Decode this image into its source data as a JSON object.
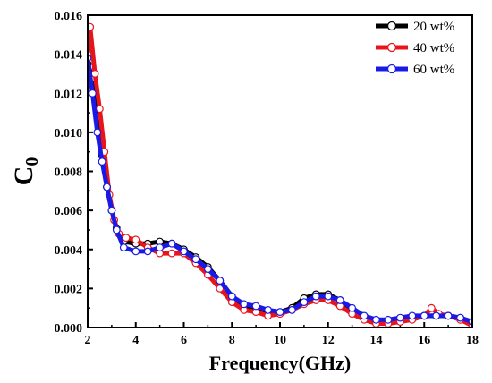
{
  "chart_data": {
    "type": "line",
    "xlabel": "Frequency(GHz)",
    "ylabel": "C",
    "ylabel_subscript": "0",
    "xlim": [
      2,
      18
    ],
    "ylim": [
      0,
      0.016
    ],
    "x_ticks": [
      2,
      4,
      6,
      8,
      10,
      12,
      14,
      16,
      18
    ],
    "x_tick_labels": [
      "2",
      "4",
      "6",
      "8",
      "10",
      "12",
      "14",
      "16",
      "18"
    ],
    "y_ticks": [
      0,
      0.002,
      0.004,
      0.006,
      0.008,
      0.01,
      0.012,
      0.014,
      0.016
    ],
    "y_tick_labels": [
      "0.000",
      "0.002",
      "0.004",
      "0.006",
      "0.008",
      "0.010",
      "0.012",
      "0.014",
      "0.016"
    ],
    "legend_position": "top-right",
    "marker": "open-circle",
    "series": [
      {
        "name": "20 wt%",
        "color": "#000000",
        "x": [
          2.0,
          2.2,
          2.4,
          2.6,
          2.8,
          3.0,
          3.2,
          3.5,
          4.0,
          4.5,
          5.0,
          5.5,
          6.0,
          6.5,
          7.0,
          7.5,
          8.0,
          8.5,
          9.0,
          9.5,
          10.0,
          10.5,
          11.0,
          11.5,
          12.0,
          12.5,
          13.0,
          13.5,
          14.0,
          14.5,
          15.0,
          15.5,
          16.0,
          16.5,
          17.0,
          17.5,
          18.0
        ],
        "values": [
          0.0135,
          0.0128,
          0.0108,
          0.0088,
          0.0072,
          0.006,
          0.0051,
          0.0044,
          0.0043,
          0.0043,
          0.0044,
          0.0043,
          0.004,
          0.0036,
          0.0031,
          0.0024,
          0.0016,
          0.0011,
          0.001,
          0.0008,
          0.0008,
          0.001,
          0.0015,
          0.0017,
          0.0017,
          0.0014,
          0.0009,
          0.0005,
          0.0003,
          0.0003,
          0.0004,
          0.0005,
          0.0006,
          0.0006,
          0.0006,
          0.0005,
          0.0002
        ]
      },
      {
        "name": "40 wt%",
        "color": "#e8141c",
        "x": [
          2.0,
          2.1,
          2.3,
          2.5,
          2.7,
          2.9,
          3.1,
          3.3,
          3.6,
          4.0,
          4.5,
          5.0,
          5.5,
          6.0,
          6.5,
          7.0,
          7.5,
          8.0,
          8.5,
          9.0,
          9.5,
          10.0,
          10.5,
          11.0,
          11.5,
          12.0,
          12.5,
          13.0,
          13.5,
          14.0,
          14.5,
          15.0,
          15.5,
          16.0,
          16.3,
          16.6,
          17.0,
          17.5,
          18.0
        ],
        "values": [
          0.014,
          0.0154,
          0.013,
          0.0112,
          0.009,
          0.0068,
          0.0055,
          0.0048,
          0.0046,
          0.0045,
          0.0041,
          0.0038,
          0.0038,
          0.0038,
          0.0033,
          0.0027,
          0.002,
          0.0013,
          0.0009,
          0.0008,
          0.0006,
          0.0007,
          0.0009,
          0.0012,
          0.0014,
          0.0014,
          0.0011,
          0.0007,
          0.0004,
          0.0002,
          0.0002,
          0.0003,
          0.0004,
          0.0006,
          0.001,
          0.0007,
          0.0006,
          0.0004,
          0.0001
        ]
      },
      {
        "name": "60 wt%",
        "color": "#1a1ae6",
        "x": [
          2.0,
          2.2,
          2.4,
          2.6,
          2.8,
          3.0,
          3.2,
          3.5,
          4.0,
          4.5,
          5.0,
          5.5,
          6.0,
          6.5,
          7.0,
          7.5,
          8.0,
          8.5,
          9.0,
          9.5,
          10.0,
          10.5,
          11.0,
          11.5,
          12.0,
          12.5,
          13.0,
          13.5,
          14.0,
          14.5,
          15.0,
          15.5,
          16.0,
          16.5,
          17.0,
          17.5,
          18.0
        ],
        "values": [
          0.0138,
          0.012,
          0.01,
          0.0085,
          0.0072,
          0.006,
          0.005,
          0.0041,
          0.0039,
          0.0039,
          0.0041,
          0.0043,
          0.0039,
          0.0035,
          0.003,
          0.0024,
          0.0016,
          0.0012,
          0.0011,
          0.0009,
          0.0008,
          0.0009,
          0.0013,
          0.0016,
          0.0016,
          0.0014,
          0.001,
          0.0006,
          0.0004,
          0.0004,
          0.0005,
          0.0006,
          0.0006,
          0.0006,
          0.0006,
          0.0005,
          0.0003
        ]
      }
    ]
  }
}
